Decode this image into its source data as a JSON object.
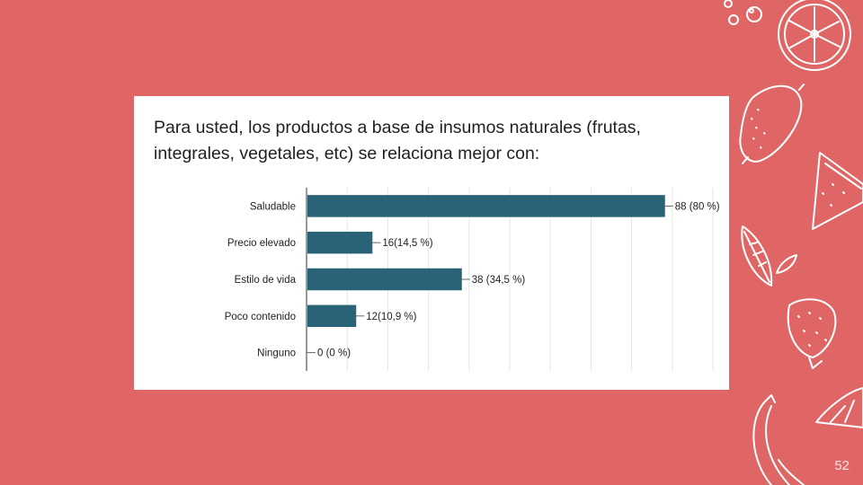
{
  "slide": {
    "number": "52",
    "background_color": "#e06666"
  },
  "decorations": {
    "icons": [
      "bubbles-icon",
      "citrus-slice-icon",
      "lemon-icon",
      "watermelon-slice-icon",
      "leaf-icon",
      "small-leaf-icon",
      "strawberry-icon",
      "lime-wedge-icon",
      "banana-icon"
    ]
  },
  "question": "Para usted, los productos a base de insumos naturales (frutas, integrales, vegetales, etc) se relaciona mejor con:",
  "chart_data": {
    "type": "bar",
    "orientation": "horizontal",
    "categories": [
      "Saludable",
      "Precio elevado",
      "Estilo de vida",
      "Poco contenido",
      "Ninguno"
    ],
    "values": [
      88,
      16,
      38,
      12,
      0
    ],
    "data_labels": [
      "88 (80 %)",
      "16(14,5 %)",
      "38 (34,5 %)",
      "12(10,9 %)",
      "0 (0 %)"
    ],
    "xlim": [
      0,
      100
    ],
    "grid": true,
    "bar_color": "#2a6378",
    "legend": false
  }
}
